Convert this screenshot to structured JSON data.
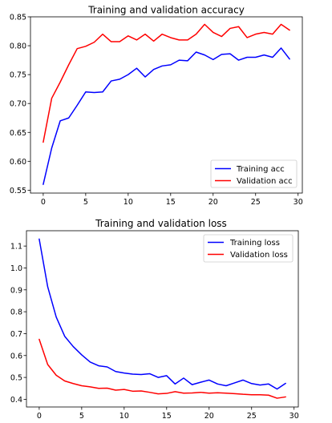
{
  "chart_data": [
    {
      "type": "line",
      "title": "Training and validation accuracy",
      "xlabel": "",
      "ylabel": "",
      "xlim": [
        -1.5,
        30.5
      ],
      "ylim": [
        0.545,
        0.85
      ],
      "xticks": [
        0,
        5,
        10,
        15,
        20,
        25,
        30
      ],
      "yticks": [
        0.55,
        0.6,
        0.65,
        0.7,
        0.75,
        0.8,
        0.85
      ],
      "ytick_format": 2,
      "grid": false,
      "legend_position": "bottom-right",
      "x": [
        0,
        1,
        2,
        3,
        4,
        5,
        6,
        7,
        8,
        9,
        10,
        11,
        12,
        13,
        14,
        15,
        16,
        17,
        18,
        19,
        20,
        21,
        22,
        23,
        24,
        25,
        26,
        27,
        28,
        29
      ],
      "series": [
        {
          "name": "Training acc",
          "color": "#0000ff",
          "values": [
            0.56,
            0.623,
            0.67,
            0.675,
            0.697,
            0.72,
            0.719,
            0.72,
            0.739,
            0.742,
            0.75,
            0.761,
            0.746,
            0.759,
            0.765,
            0.767,
            0.775,
            0.774,
            0.789,
            0.784,
            0.776,
            0.785,
            0.786,
            0.775,
            0.78,
            0.78,
            0.784,
            0.78,
            0.796,
            0.777
          ]
        },
        {
          "name": "Validation acc",
          "color": "#ff0000",
          "values": [
            0.633,
            0.709,
            0.737,
            0.767,
            0.795,
            0.799,
            0.806,
            0.82,
            0.807,
            0.807,
            0.817,
            0.81,
            0.82,
            0.808,
            0.82,
            0.814,
            0.81,
            0.81,
            0.82,
            0.837,
            0.823,
            0.816,
            0.83,
            0.833,
            0.814,
            0.82,
            0.823,
            0.82,
            0.837,
            0.827
          ]
        }
      ]
    },
    {
      "type": "line",
      "title": "Training and validation loss",
      "xlabel": "",
      "ylabel": "",
      "xlim": [
        -1.5,
        30.5
      ],
      "ylim": [
        0.365,
        1.17
      ],
      "xticks": [
        0,
        5,
        10,
        15,
        20,
        25,
        30
      ],
      "yticks": [
        0.4,
        0.5,
        0.6,
        0.7,
        0.8,
        0.9,
        1.0,
        1.1
      ],
      "ytick_format": 1,
      "grid": false,
      "legend_position": "top-right",
      "x": [
        0,
        1,
        2,
        3,
        4,
        5,
        6,
        7,
        8,
        9,
        10,
        11,
        12,
        13,
        14,
        15,
        16,
        17,
        18,
        19,
        20,
        21,
        22,
        23,
        24,
        25,
        26,
        27,
        28,
        29
      ],
      "series": [
        {
          "name": "Training loss",
          "color": "#0000ff",
          "values": [
            1.132,
            0.914,
            0.776,
            0.688,
            0.641,
            0.603,
            0.57,
            0.553,
            0.548,
            0.527,
            0.52,
            0.515,
            0.513,
            0.517,
            0.5,
            0.508,
            0.47,
            0.497,
            0.467,
            0.478,
            0.488,
            0.47,
            0.462,
            0.475,
            0.488,
            0.472,
            0.465,
            0.47,
            0.447,
            0.473
          ]
        },
        {
          "name": "Validation loss",
          "color": "#ff0000",
          "values": [
            0.674,
            0.559,
            0.51,
            0.484,
            0.472,
            0.462,
            0.457,
            0.45,
            0.451,
            0.442,
            0.445,
            0.437,
            0.438,
            0.432,
            0.425,
            0.427,
            0.435,
            0.428,
            0.429,
            0.432,
            0.428,
            0.43,
            0.428,
            0.426,
            0.423,
            0.421,
            0.421,
            0.419,
            0.405,
            0.411
          ]
        }
      ]
    }
  ]
}
